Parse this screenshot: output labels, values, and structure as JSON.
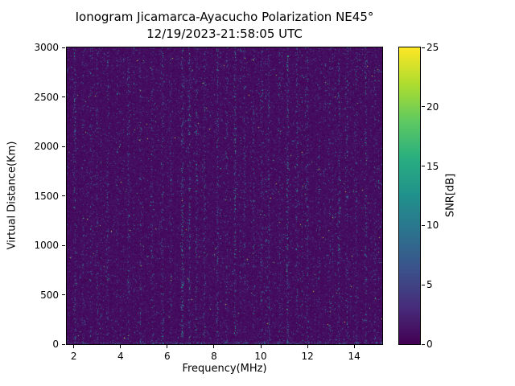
{
  "chart_data": {
    "type": "heatmap",
    "title": "Ionogram Jicamarca-Ayacucho Polarization NE45°",
    "subtitle": "12/19/2023-21:58:05 UTC",
    "xlabel": "Frequency(MHz)",
    "ylabel": "Virtual Distance(Km)",
    "colorbar_label": "SNR[dB]",
    "xlim": [
      1.7,
      15.2
    ],
    "ylim": [
      0,
      3000
    ],
    "snr_range_db": [
      0,
      25
    ],
    "x_ticks": [
      2,
      4,
      6,
      8,
      10,
      12,
      14
    ],
    "y_ticks": [
      0,
      500,
      1000,
      1500,
      2000,
      2500,
      3000
    ],
    "colorbar_ticks": [
      0,
      5,
      10,
      15,
      20,
      25
    ],
    "colormap": "viridis",
    "colormap_stops": [
      {
        "t": 0.0,
        "hex": "#440154"
      },
      {
        "t": 0.125,
        "hex": "#472d7b"
      },
      {
        "t": 0.25,
        "hex": "#3b528b"
      },
      {
        "t": 0.375,
        "hex": "#2c728e"
      },
      {
        "t": 0.5,
        "hex": "#21918c"
      },
      {
        "t": 0.625,
        "hex": "#28ae80"
      },
      {
        "t": 0.75,
        "hex": "#5ec962"
      },
      {
        "t": 0.875,
        "hex": "#addc30"
      },
      {
        "t": 1.0,
        "hex": "#fde725"
      }
    ],
    "description": "Background of low-SNR speckle noise (~0-2 dB) over the whole frequency/range map with scattered brighter speckles; vertical radio-interference stripes at several frequencies; enhanced noise line along the bottom (0 km) edge; no distinct ionospheric echo trace visible.",
    "background_snr_db": 1,
    "bottom_edge_enhanced": true,
    "interference_bands": [
      {
        "f": 2.05,
        "s": 0.55
      },
      {
        "f": 2.4,
        "s": 0.3
      },
      {
        "f": 2.75,
        "s": 0.3
      },
      {
        "f": 3.0,
        "s": 0.35
      },
      {
        "f": 3.45,
        "s": 0.45
      },
      {
        "f": 3.85,
        "s": 0.25
      },
      {
        "f": 4.35,
        "s": 0.4
      },
      {
        "f": 4.85,
        "s": 0.3
      },
      {
        "f": 5.35,
        "s": 0.45
      },
      {
        "f": 5.8,
        "s": 0.5
      },
      {
        "f": 6.15,
        "s": 0.35
      },
      {
        "f": 6.65,
        "s": 0.8
      },
      {
        "f": 6.95,
        "s": 0.7
      },
      {
        "f": 7.25,
        "s": 0.5
      },
      {
        "f": 7.6,
        "s": 0.55
      },
      {
        "f": 8.15,
        "s": 0.6
      },
      {
        "f": 8.55,
        "s": 0.4
      },
      {
        "f": 8.9,
        "s": 0.75
      },
      {
        "f": 9.3,
        "s": 0.5
      },
      {
        "f": 9.7,
        "s": 0.35
      },
      {
        "f": 10.05,
        "s": 0.45
      },
      {
        "f": 10.35,
        "s": 0.5
      },
      {
        "f": 10.8,
        "s": 0.35
      },
      {
        "f": 11.15,
        "s": 0.7
      },
      {
        "f": 11.55,
        "s": 0.45
      },
      {
        "f": 12.0,
        "s": 0.5
      },
      {
        "f": 12.5,
        "s": 0.3
      },
      {
        "f": 12.95,
        "s": 0.35
      },
      {
        "f": 13.35,
        "s": 0.55
      },
      {
        "f": 13.7,
        "s": 0.4
      },
      {
        "f": 14.1,
        "s": 0.35
      },
      {
        "f": 14.5,
        "s": 0.5
      },
      {
        "f": 14.9,
        "s": 0.35
      }
    ],
    "noise_seed": 20231219
  }
}
